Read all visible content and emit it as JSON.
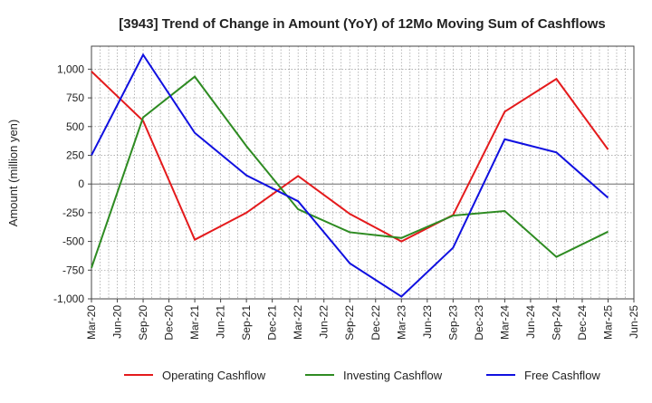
{
  "chart_data": {
    "type": "line",
    "title": "[3943]  Trend of Change in Amount (YoY) of 12Mo Moving Sum of Cashflows",
    "xlabel": "",
    "ylabel": "Amount (million yen)",
    "ylim": [
      -1000,
      1200
    ],
    "yticks": [
      1000,
      750,
      500,
      250,
      0,
      -250,
      -500,
      -750,
      -1000
    ],
    "ytick_labels": [
      "1,000",
      "750",
      "500",
      "250",
      "0",
      "-250",
      "-500",
      "-750",
      "-1,000"
    ],
    "categories": [
      "Mar-20",
      "Jun-20",
      "Sep-20",
      "Dec-20",
      "Mar-21",
      "Jun-21",
      "Sep-21",
      "Dec-21",
      "Mar-22",
      "Jun-22",
      "Sep-22",
      "Dec-22",
      "Mar-23",
      "Jun-23",
      "Sep-23",
      "Dec-23",
      "Mar-24",
      "Jun-24",
      "Sep-24",
      "Dec-24",
      "Mar-25",
      "Jun-25"
    ],
    "grid": true,
    "legend_position": "bottom",
    "series": [
      {
        "name": "Operating Cashflow",
        "color": "#e41a1c",
        "points": [
          [
            "Mar-20",
            980
          ],
          [
            "Sep-20",
            550
          ],
          [
            "Mar-21",
            -485
          ],
          [
            "Sep-21",
            -250
          ],
          [
            "Mar-22",
            70
          ],
          [
            "Sep-22",
            -260
          ],
          [
            "Mar-23",
            -500
          ],
          [
            "Sep-23",
            -270
          ],
          [
            "Mar-24",
            630
          ],
          [
            "Sep-24",
            915
          ],
          [
            "Mar-25",
            300
          ]
        ]
      },
      {
        "name": "Investing Cashflow",
        "color": "#2e8b22",
        "points": [
          [
            "Mar-20",
            -730
          ],
          [
            "Sep-20",
            580
          ],
          [
            "Mar-21",
            935
          ],
          [
            "Sep-21",
            330
          ],
          [
            "Mar-22",
            -220
          ],
          [
            "Sep-22",
            -420
          ],
          [
            "Mar-23",
            -470
          ],
          [
            "Sep-23",
            -275
          ],
          [
            "Mar-24",
            -235
          ],
          [
            "Sep-24",
            -635
          ],
          [
            "Mar-25",
            -415
          ]
        ]
      },
      {
        "name": "Free Cashflow",
        "color": "#1010e0",
        "points": [
          [
            "Mar-20",
            250
          ],
          [
            "Sep-20",
            1125
          ],
          [
            "Mar-21",
            445
          ],
          [
            "Sep-21",
            75
          ],
          [
            "Mar-22",
            -150
          ],
          [
            "Sep-22",
            -690
          ],
          [
            "Mar-23",
            -980
          ],
          [
            "Sep-23",
            -555
          ],
          [
            "Mar-24",
            390
          ],
          [
            "Sep-24",
            275
          ],
          [
            "Mar-25",
            -120
          ]
        ]
      }
    ]
  }
}
